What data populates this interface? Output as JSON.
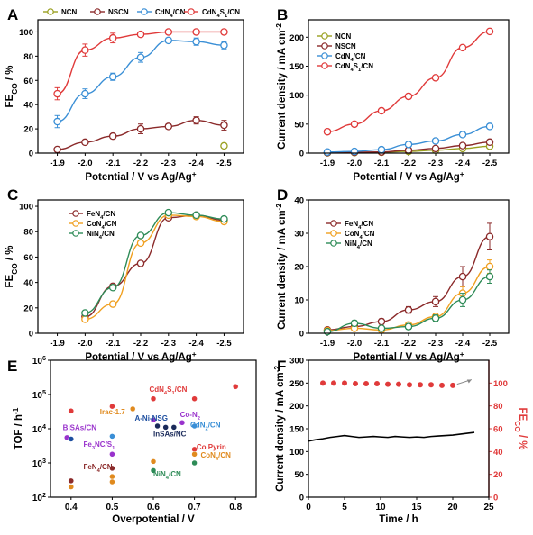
{
  "colors": {
    "ncn": "#9aa020",
    "nscn": "#8b2a2a",
    "cdn4cn": "#3a8fd6",
    "cdn4s1cn": "#e03a3a",
    "fe": "#8b2a2a",
    "co": "#f0a020",
    "ni": "#2e8b57",
    "fe_label": "#8b3a2a",
    "purple": "#9932cc",
    "orange": "#e08a1e",
    "blue": "#1e4fa0",
    "cdblue": "#3a8fd6",
    "navy": "#1a2a5a",
    "red": "#e03a3a"
  },
  "chart_data": [
    {
      "panel": "A",
      "type": "line",
      "ylabel": "FECO / %",
      "ylabel_main": "FE",
      "ylabel_sub": "CO",
      "ylabel_tail": " / %",
      "xlabel": "Potential / V vs Ag/Ag",
      "xlabel_sup": "+",
      "categories": [
        "-1.9",
        "-2.0",
        "-2.1",
        "-2.2",
        "-2.3",
        "-2.4",
        "-2.5"
      ],
      "yticks": [
        "0",
        "20",
        "40",
        "60",
        "80",
        "100"
      ],
      "ylim": [
        0,
        110
      ],
      "legend": "top",
      "series": [
        {
          "name": "NCN",
          "color_key": "ncn",
          "values": [
            null,
            null,
            null,
            null,
            null,
            null,
            6
          ],
          "err": [
            0,
            0,
            0,
            0,
            0,
            0,
            0
          ]
        },
        {
          "name": "NSCN",
          "color_key": "nscn",
          "values": [
            3,
            9,
            14,
            20,
            22,
            27,
            23
          ],
          "err": [
            1,
            1,
            2,
            4,
            2,
            3,
            4
          ]
        },
        {
          "name": "CdN4/CN",
          "color_key": "cdn4cn",
          "values": [
            26,
            49,
            63,
            79,
            93,
            92,
            89
          ],
          "err": [
            5,
            4,
            3,
            4,
            2,
            3,
            3
          ]
        },
        {
          "name": "CdN4S1/CN",
          "color_key": "cdn4s1cn",
          "values": [
            49,
            85,
            95,
            98,
            100,
            100,
            100
          ],
          "err": [
            5,
            5,
            4,
            2,
            1,
            1,
            1
          ]
        }
      ]
    },
    {
      "panel": "B",
      "type": "line",
      "ylabel": "Current density / mA cm-2",
      "ylabel_main": "Current density / mA cm",
      "ylabel_sup": "-2",
      "xlabel": "Potential / V vs Ag/Ag",
      "xlabel_sup": "+",
      "categories": [
        "-1.9",
        "-2.0",
        "-2.1",
        "-2.2",
        "-2.3",
        "-2.4",
        "-2.5"
      ],
      "yticks": [
        "0",
        "50",
        "100",
        "150",
        "200"
      ],
      "ylim": [
        0,
        230
      ],
      "legend": "top-left",
      "series": [
        {
          "name": "NCN",
          "color_key": "ncn",
          "values": [
            0.5,
            1,
            1.5,
            3,
            5,
            8,
            12
          ]
        },
        {
          "name": "NSCN",
          "color_key": "nscn",
          "values": [
            1,
            1.5,
            2,
            5,
            8,
            13,
            19
          ]
        },
        {
          "name": "CdN4/CN",
          "color_key": "cdn4cn",
          "values": [
            2,
            3,
            6,
            15,
            21,
            32,
            46
          ]
        },
        {
          "name": "CdN4S1/CN",
          "color_key": "cdn4s1cn",
          "values": [
            37,
            50,
            73,
            98,
            130,
            182,
            210
          ]
        }
      ]
    },
    {
      "panel": "C",
      "type": "line",
      "ylabel": "FECO / %",
      "ylabel_main": "FE",
      "ylabel_sub": "CO",
      "ylabel_tail": " / %",
      "xlabel": "Potential / V vs Ag/Ag",
      "xlabel_sup": "+",
      "categories": [
        "-1.9",
        "-2.0",
        "-2.1",
        "-2.2",
        "-2.3",
        "-2.4",
        "-2.5"
      ],
      "yticks": [
        "0",
        "20",
        "40",
        "60",
        "80",
        "100"
      ],
      "ylim": [
        0,
        105
      ],
      "legend": "top-left",
      "series": [
        {
          "name": "FeN4/CN",
          "color_key": "fe",
          "values": [
            null,
            13,
            37,
            55,
            91,
            93,
            89
          ]
        },
        {
          "name": "CoN4/CN",
          "color_key": "co",
          "values": [
            null,
            11,
            23,
            71,
            93,
            92,
            88
          ]
        },
        {
          "name": "NiN4/CN",
          "color_key": "ni",
          "values": [
            null,
            16,
            36,
            77,
            95,
            93,
            90
          ]
        }
      ]
    },
    {
      "panel": "D",
      "type": "line",
      "ylabel": "Current density / mA cm-2",
      "ylabel_main": "Current density / mA cm",
      "ylabel_sup": "-2",
      "xlabel": "Potential / V vs Ag/Ag",
      "xlabel_sup": "+",
      "categories": [
        "-1.9",
        "-2.0",
        "-2.1",
        "-2.2",
        "-2.3",
        "-2.4",
        "-2.5"
      ],
      "yticks": [
        "0",
        "10",
        "20",
        "30",
        "40"
      ],
      "ylim": [
        0,
        40
      ],
      "legend": "top-left",
      "series": [
        {
          "name": "FeN4/CN",
          "color_key": "fe",
          "values": [
            1,
            2,
            3.5,
            7,
            9.5,
            17,
            29
          ],
          "err": [
            0.5,
            0.8,
            0.8,
            1,
            1.5,
            3,
            4
          ]
        },
        {
          "name": "CoN4/CN",
          "color_key": "co",
          "values": [
            0.8,
            1.5,
            1,
            2.5,
            5,
            12,
            20
          ],
          "err": [
            0.5,
            0.5,
            0.5,
            0.8,
            1,
            2,
            2
          ]
        },
        {
          "name": "NiN4/CN",
          "color_key": "ni",
          "values": [
            0.5,
            3,
            1.5,
            2,
            4.5,
            10,
            17
          ],
          "err": [
            0.5,
            0.8,
            0.5,
            0.8,
            1,
            2,
            2
          ]
        }
      ]
    },
    {
      "panel": "E",
      "type": "scatter",
      "ylabel": "TOF / h-1",
      "ylabel_main": "TOF / h",
      "ylabel_sup": "-1",
      "xlabel": "Overpotential / V",
      "xticks": [
        "0.4",
        "0.5",
        "0.6",
        "0.7",
        "0.8"
      ],
      "xlim": [
        0.35,
        0.85
      ],
      "yticks": [
        "10",
        "10",
        "10",
        "10",
        "10"
      ],
      "ytick_exp": [
        "2",
        "3",
        "4",
        "5",
        "6"
      ],
      "ylim_log10": [
        2,
        6
      ],
      "points": [
        {
          "x": 0.8,
          "y": 170000,
          "color_key": "red"
        },
        {
          "x": 0.6,
          "y": 75000,
          "color_key": "red"
        },
        {
          "x": 0.7,
          "y": 75000,
          "color_key": "red"
        },
        {
          "x": 0.4,
          "y": 33000,
          "color_key": "red"
        },
        {
          "x": 0.5,
          "y": 45000,
          "color_key": "red"
        },
        {
          "x": 0.55,
          "y": 38000,
          "color_key": "orange"
        },
        {
          "x": 0.6,
          "y": 18000,
          "color_key": "purple"
        },
        {
          "x": 0.61,
          "y": 12000,
          "color_key": "navy"
        },
        {
          "x": 0.63,
          "y": 11000,
          "color_key": "navy"
        },
        {
          "x": 0.65,
          "y": 11000,
          "color_key": "navy"
        },
        {
          "x": 0.67,
          "y": 15000,
          "color_key": "purple"
        },
        {
          "x": 0.7,
          "y": 12000,
          "color_key": "cdblue"
        },
        {
          "x": 0.39,
          "y": 5500,
          "color_key": "purple"
        },
        {
          "x": 0.4,
          "y": 5000,
          "color_key": "blue"
        },
        {
          "x": 0.5,
          "y": 6000,
          "color_key": "cdblue"
        },
        {
          "x": 0.5,
          "y": 1800,
          "color_key": "purple"
        },
        {
          "x": 0.7,
          "y": 2500,
          "color_key": "red"
        },
        {
          "x": 0.7,
          "y": 1800,
          "color_key": "orange"
        },
        {
          "x": 0.7,
          "y": 1000,
          "color_key": "ni"
        },
        {
          "x": 0.6,
          "y": 1100,
          "color_key": "orange"
        },
        {
          "x": 0.5,
          "y": 700,
          "color_key": "fe"
        },
        {
          "x": 0.6,
          "y": 600,
          "color_key": "ni"
        },
        {
          "x": 0.5,
          "y": 400,
          "color_key": "orange"
        },
        {
          "x": 0.4,
          "y": 300,
          "color_key": "fe"
        },
        {
          "x": 0.4,
          "y": 200,
          "color_key": "orange"
        },
        {
          "x": 0.5,
          "y": 280,
          "color_key": "orange"
        }
      ],
      "labels": [
        {
          "text": "CdN4S1/CN",
          "main": "CdN",
          "sub1": "4",
          "mid": "S",
          "sub2": "1",
          "tail": "/CN",
          "color_key": "red",
          "x": 0.59,
          "y": 120000
        },
        {
          "text": "Irac-1.7",
          "main": "Irac-1.7",
          "color_key": "orange",
          "x": 0.47,
          "y": 26000
        },
        {
          "text": "Co-N2",
          "main": "Co-N",
          "sub1": "2",
          "color_key": "purple",
          "x": 0.665,
          "y": 22000
        },
        {
          "text": "A-Ni-NSG",
          "main": "A-Ni-NSG",
          "color_key": "blue",
          "x": 0.555,
          "y": 17000
        },
        {
          "text": "CdN2/CN",
          "main": "CdN",
          "sub1": "2",
          "tail": "/CN",
          "color_key": "cdblue",
          "x": 0.69,
          "y": 11000
        },
        {
          "text": "BiSAs/CN",
          "main": "BiSAs/CN",
          "color_key": "purple",
          "x": 0.38,
          "y": 9000
        },
        {
          "text": "InSAs/NC",
          "main": "InSAs/NC",
          "color_key": "navy",
          "x": 0.6,
          "y": 6000
        },
        {
          "text": "Fe3NC/S1",
          "main": "Fe",
          "sub1": "3",
          "mid": "NC/S",
          "sub2": "1",
          "color_key": "purple",
          "x": 0.43,
          "y": 3000
        },
        {
          "text": "Co Pyrin",
          "main": "Co Pyrin",
          "color_key": "red",
          "x": 0.705,
          "y": 2500
        },
        {
          "text": "CoN4/CN",
          "main": "CoN",
          "sub1": "4",
          "tail": "/CN",
          "color_key": "orange",
          "x": 0.715,
          "y": 1450
        },
        {
          "text": "FeN4/CN",
          "main": "FeN",
          "sub1": "4",
          "tail": "/CN",
          "color_key": "fe",
          "x": 0.43,
          "y": 650
        },
        {
          "text": "NiN4/CN",
          "main": "NiN",
          "sub1": "4",
          "tail": "/CN",
          "color_key": "ni",
          "x": 0.6,
          "y": 400
        }
      ]
    },
    {
      "panel": "F",
      "type": "line+scatter",
      "ylabel": "Current density / mA cm-2",
      "ylabel_main": "Current density / mA cm",
      "ylabel_sup": "-2",
      "ylabel_right": "FECO / %",
      "ylabel_right_main": "FE",
      "ylabel_right_sub": "CO",
      "ylabel_right_tail": " / %",
      "xlabel": "Time / h",
      "xticks": [
        "0",
        "5",
        "10",
        "15",
        "20",
        "25"
      ],
      "xlim": [
        0,
        25
      ],
      "yticks": [
        "0",
        "50",
        "100",
        "150",
        "200",
        "250",
        "300"
      ],
      "ylim": [
        0,
        300
      ],
      "yticks_right": [
        "0",
        "20",
        "40",
        "60",
        "80",
        "100"
      ],
      "ylim_right": [
        0,
        120
      ],
      "current": {
        "x": [
          0,
          1,
          2,
          3,
          4,
          5,
          6,
          7,
          8,
          9,
          10,
          11,
          12,
          13,
          14,
          15,
          16,
          17,
          18,
          19,
          20,
          21,
          22,
          23
        ],
        "y": [
          123,
          126,
          128,
          131,
          133,
          135,
          133,
          131,
          132,
          133,
          132,
          131,
          133,
          132,
          131,
          132,
          131,
          133,
          134,
          135,
          136,
          138,
          140,
          142
        ]
      },
      "fe": {
        "x": [
          2,
          3.5,
          5,
          6.5,
          8,
          9.5,
          11,
          12.5,
          14,
          15.5,
          17,
          18.5,
          20
        ],
        "y": [
          100,
          100,
          100,
          99.5,
          99.5,
          99.5,
          99,
          99,
          98.5,
          98.5,
          98.5,
          98,
          98
        ]
      }
    }
  ],
  "panels": [
    "A",
    "B",
    "C",
    "D",
    "E",
    "F"
  ]
}
